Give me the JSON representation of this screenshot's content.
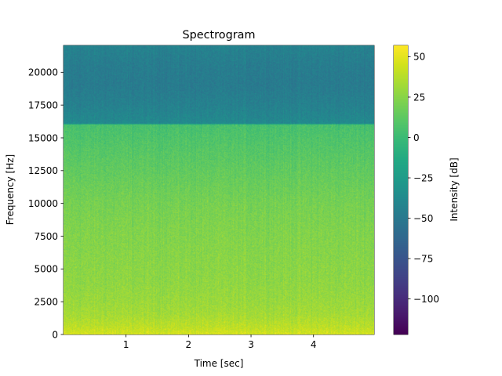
{
  "chart_data": {
    "type": "heatmap",
    "title": "Spectrogram",
    "xlabel": "Time [sec]",
    "ylabel": "Frequency [Hz]",
    "colorbar_label": "Intensity [dB]",
    "colormap": "viridis",
    "xlim": [
      0.0,
      4.97
    ],
    "ylim": [
      0,
      22050
    ],
    "clim": [
      -122,
      57
    ],
    "xticks": [
      1,
      2,
      3,
      4
    ],
    "xtick_labels": [
      "1",
      "2",
      "3",
      "4"
    ],
    "yticks": [
      0,
      2500,
      5000,
      7500,
      10000,
      12500,
      15000,
      17500,
      20000
    ],
    "ytick_labels": [
      "0",
      "2500",
      "5000",
      "7500",
      "10000",
      "12500",
      "15000",
      "17500",
      "20000"
    ],
    "cbar_ticks": [
      50,
      25,
      0,
      -25,
      -50,
      -75,
      -100
    ],
    "cbar_tick_labels": [
      "50",
      "25",
      "0",
      "−25",
      "−50",
      "−75",
      "−100"
    ],
    "intensity_profile": {
      "frequency_hz": [
        0,
        500,
        1500,
        2500,
        4000,
        6000,
        8000,
        10000,
        12000,
        14000,
        15500,
        16000,
        16100,
        17500,
        19000,
        20500,
        22050
      ],
      "intensity_db": [
        46,
        40,
        33,
        30,
        27,
        25,
        23,
        20,
        15,
        10,
        6,
        5,
        -38,
        -44,
        -48,
        -47,
        -43
      ]
    },
    "grid": false,
    "legend": "none"
  }
}
